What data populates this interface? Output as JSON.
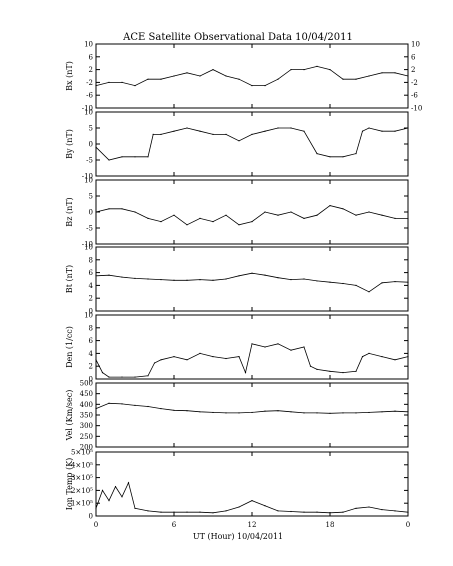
{
  "chart_data": {
    "title": "ACE Satellite Observational Data   10/04/2011",
    "xlabel": "UT (Hour)  10/04/2011",
    "x_ticks": [
      "0",
      "6",
      "12",
      "18",
      "0"
    ],
    "panels": [
      {
        "type": "line",
        "ylabel": "Bx (nT)",
        "ylim": [
          -10,
          10
        ],
        "ytick_labels": [
          "-10",
          "-6",
          "-2",
          "2",
          "6",
          "10"
        ],
        "right_ytick_labels": [
          "10",
          "6",
          "2",
          "-2",
          "-6",
          "-10"
        ],
        "x": [
          0,
          1,
          2,
          3,
          4,
          5,
          6,
          7,
          8,
          9,
          10,
          11,
          12,
          13,
          14,
          15,
          16,
          17,
          18,
          19,
          20,
          21,
          22,
          23,
          24
        ],
        "values": [
          -3,
          -2,
          -2,
          -3,
          -1,
          -1,
          0,
          1,
          0,
          2,
          0,
          -1,
          -3,
          -3,
          -1,
          2,
          2,
          3,
          2,
          -1,
          -1,
          0,
          1,
          1,
          0
        ]
      },
      {
        "type": "line",
        "ylabel": "By (nT)",
        "ylim": [
          -10,
          10
        ],
        "ytick_labels": [
          "-10",
          "-5",
          "0",
          "5",
          "10"
        ],
        "x": [
          0,
          1,
          2,
          3,
          4,
          4.4,
          5,
          6,
          7,
          8,
          9,
          10,
          11,
          12,
          13,
          14,
          15,
          16,
          17,
          18,
          19,
          20,
          20.5,
          21,
          22,
          23,
          24
        ],
        "values": [
          -1,
          -5,
          -4,
          -4,
          -4,
          3,
          3,
          4,
          5,
          4,
          3,
          3,
          1,
          3,
          4,
          5,
          5,
          4,
          -3,
          -4,
          -4,
          -3,
          4,
          5,
          4,
          4,
          5
        ]
      },
      {
        "type": "line",
        "ylabel": "Bz (nT)",
        "ylim": [
          -10,
          10
        ],
        "ytick_labels": [
          "-10",
          "-5",
          "0",
          "5",
          "10"
        ],
        "x": [
          0,
          1,
          2,
          3,
          4,
          5,
          6,
          7,
          8,
          9,
          10,
          11,
          12,
          13,
          14,
          15,
          16,
          17,
          18,
          19,
          20,
          21,
          22,
          23,
          24
        ],
        "values": [
          0,
          1,
          1,
          0,
          -2,
          -3,
          -1,
          -4,
          -2,
          -3,
          -1,
          -4,
          -3,
          0,
          -1,
          0,
          -2,
          -1,
          2,
          1,
          -1,
          0,
          -1,
          -2,
          -2
        ]
      },
      {
        "type": "line",
        "ylabel": "Bt (nT)",
        "ylim": [
          0,
          10
        ],
        "ytick_labels": [
          "0",
          "2",
          "4",
          "6",
          "8",
          "10"
        ],
        "x": [
          0,
          1,
          2,
          3,
          4,
          5,
          6,
          7,
          8,
          9,
          10,
          11,
          12,
          13,
          14,
          15,
          16,
          17,
          18,
          19,
          20,
          21,
          22,
          23,
          24
        ],
        "values": [
          5.5,
          5.6,
          5.3,
          5.1,
          5.0,
          4.9,
          4.8,
          4.8,
          4.9,
          4.8,
          5.0,
          5.5,
          5.9,
          5.6,
          5.2,
          4.9,
          5.0,
          4.7,
          4.5,
          4.3,
          4.0,
          3.0,
          4.4,
          4.6,
          4.5
        ]
      },
      {
        "type": "line",
        "ylabel": "Den (1/cc)",
        "ylim": [
          0,
          10
        ],
        "ytick_labels": [
          "0",
          "2",
          "4",
          "6",
          "8",
          "10"
        ],
        "x": [
          0,
          0.5,
          1,
          2,
          3,
          4,
          4.5,
          5,
          6,
          7,
          8,
          9,
          10,
          11,
          11.5,
          12,
          13,
          14,
          15,
          16,
          16.5,
          17,
          18,
          19,
          20,
          20.5,
          21,
          22,
          23,
          24
        ],
        "values": [
          3.0,
          1.0,
          0.3,
          0.3,
          0.3,
          0.5,
          2.5,
          3.0,
          3.5,
          3.0,
          4.0,
          3.5,
          3.2,
          3.5,
          1.0,
          5.5,
          5.0,
          5.5,
          4.5,
          5.0,
          2.0,
          1.5,
          1.2,
          1.0,
          1.2,
          3.5,
          4.0,
          3.5,
          3.0,
          3.5
        ]
      },
      {
        "type": "line",
        "ylabel": "Vel (Km/sec)",
        "ylim": [
          200,
          500
        ],
        "ytick_labels": [
          "200",
          "250",
          "300",
          "350",
          "400",
          "450",
          "500"
        ],
        "x": [
          0,
          1,
          2,
          3,
          4,
          5,
          6,
          7,
          8,
          9,
          10,
          11,
          12,
          13,
          14,
          15,
          16,
          17,
          18,
          19,
          20,
          21,
          22,
          23,
          24
        ],
        "values": [
          380,
          405,
          402,
          395,
          390,
          380,
          372,
          370,
          365,
          362,
          360,
          360,
          362,
          368,
          370,
          365,
          360,
          360,
          358,
          360,
          360,
          362,
          365,
          368,
          365
        ]
      },
      {
        "type": "line",
        "ylabel": "Ion Temp (K)",
        "ylim": [
          0,
          500000
        ],
        "ytick_labels": [
          "0",
          "1×10⁵",
          "2×10⁵",
          "3×10⁵",
          "4×10⁵",
          "5×10⁵"
        ],
        "x": [
          0,
          0.5,
          1,
          1.5,
          2,
          2.5,
          3,
          4,
          5,
          6,
          7,
          8,
          9,
          10,
          11,
          12,
          13,
          14,
          15,
          16,
          17,
          18,
          19,
          20,
          21,
          22,
          23,
          24
        ],
        "values": [
          60000,
          200000,
          120000,
          230000,
          150000,
          260000,
          60000,
          40000,
          30000,
          30000,
          30000,
          30000,
          25000,
          40000,
          70000,
          120000,
          80000,
          40000,
          35000,
          30000,
          30000,
          25000,
          30000,
          60000,
          70000,
          50000,
          40000,
          30000
        ]
      }
    ]
  }
}
